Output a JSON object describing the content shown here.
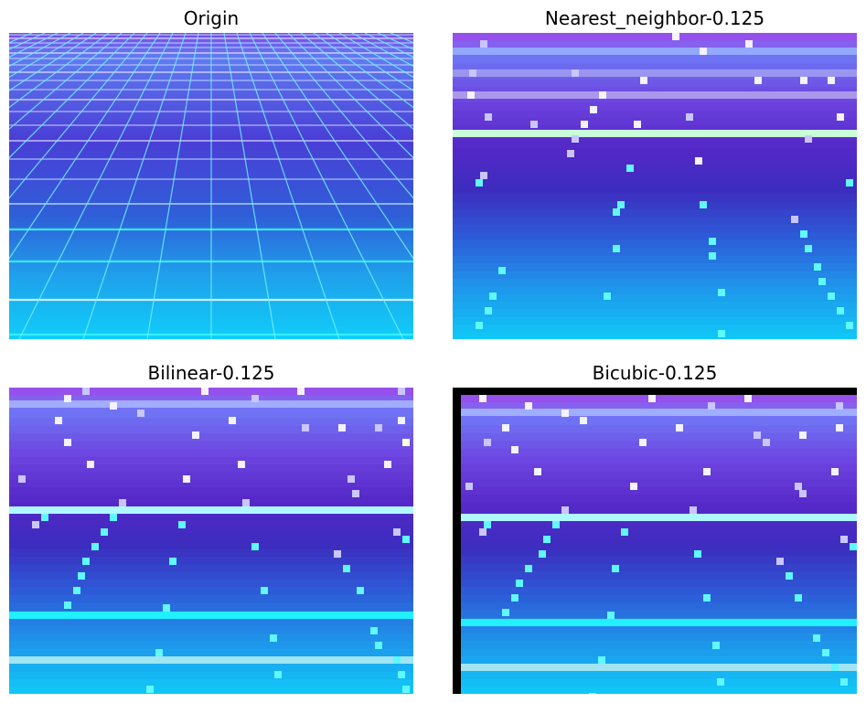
{
  "figure": {
    "panels": [
      {
        "title": "Origin"
      },
      {
        "title": "Nearest_neighbor-0.125"
      },
      {
        "title": "Bilinear-0.125"
      },
      {
        "title": "Bicubic-0.125"
      }
    ]
  },
  "colors": {
    "sky_top": "#a24be6",
    "sky_mid": "#6a2bd4",
    "horizon": "#4a26b3",
    "floor_mid": "#2f5fd8",
    "floor_low": "#1fa2ec",
    "floor_bottom": "#10cdf7",
    "grid_cyan": "#38f4ff",
    "grid_pale": "#d8f8ff",
    "pixel_white": "#f3f2ff",
    "border_black": "#000000"
  }
}
